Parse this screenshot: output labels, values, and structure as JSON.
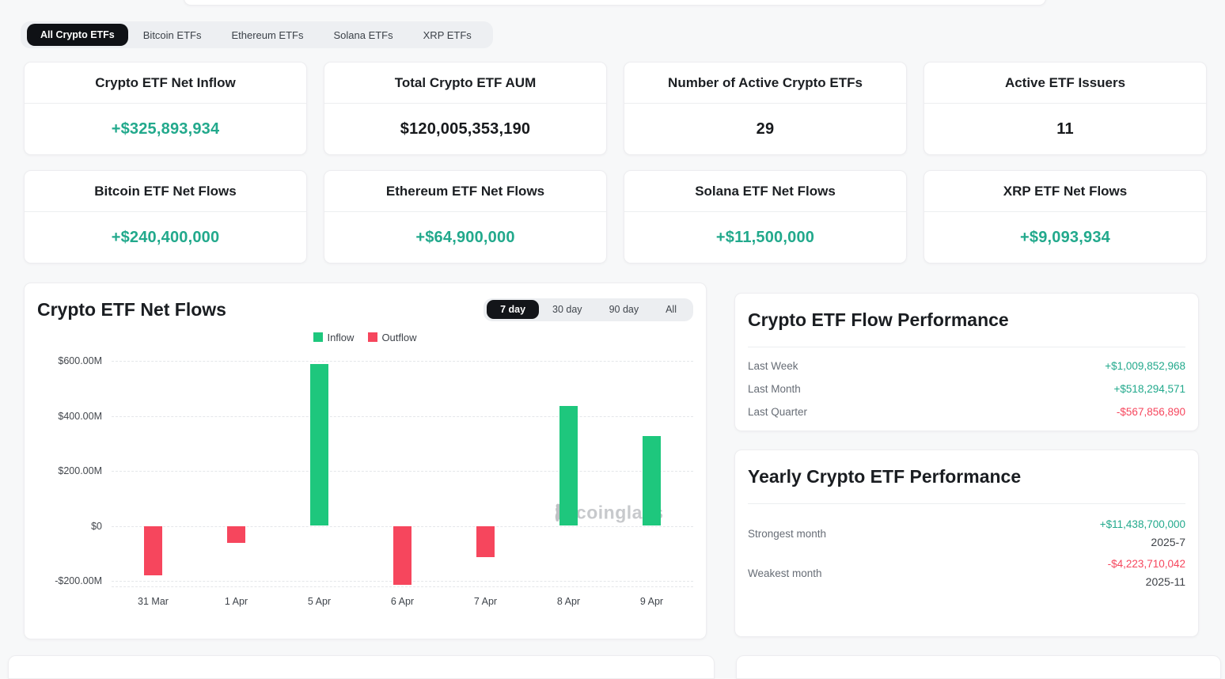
{
  "colors": {
    "positive": "#22A98C",
    "negative": "#F6465D",
    "neutral": "#17191C",
    "bar_green": "#1EC77D",
    "bar_red": "#F6465D",
    "active_pill": "#0F1115",
    "watermark_gray": "#C7C9CC"
  },
  "top_tabs": {
    "items": [
      {
        "label": "All Crypto ETFs",
        "active": true
      },
      {
        "label": "Bitcoin ETFs",
        "active": false
      },
      {
        "label": "Ethereum ETFs",
        "active": false
      },
      {
        "label": "Solana ETFs",
        "active": false
      },
      {
        "label": "XRP ETFs",
        "active": false
      }
    ]
  },
  "stat_cards": [
    {
      "title": "Crypto ETF Net Inflow",
      "value": "+$325,893,934",
      "color": "positive"
    },
    {
      "title": "Total Crypto ETF AUM",
      "value": "$120,005,353,190",
      "color": "neutral"
    },
    {
      "title": "Number of Active Crypto ETFs",
      "value": "29",
      "color": "neutral"
    },
    {
      "title": "Active ETF Issuers",
      "value": "11",
      "color": "neutral"
    },
    {
      "title": "Bitcoin ETF Net Flows",
      "value": "+$240,400,000",
      "color": "positive"
    },
    {
      "title": "Ethereum ETF Net Flows",
      "value": "+$64,900,000",
      "color": "positive"
    },
    {
      "title": "Solana ETF Net Flows",
      "value": "+$11,500,000",
      "color": "positive"
    },
    {
      "title": "XRP ETF Net Flows",
      "value": "+$9,093,934",
      "color": "positive"
    }
  ],
  "chart_card": {
    "title": "Crypto ETF Net Flows",
    "period_tabs": [
      {
        "label": "7 day",
        "active": true
      },
      {
        "label": "30 day",
        "active": false
      },
      {
        "label": "90 day",
        "active": false
      },
      {
        "label": "All",
        "active": false
      }
    ],
    "legend": [
      {
        "label": "Inflow",
        "color": "#1EC77D"
      },
      {
        "label": "Outflow",
        "color": "#F6465D"
      }
    ],
    "watermark": "coinglass"
  },
  "chart_data": {
    "type": "bar",
    "title": "Crypto ETF Net Flows",
    "categories": [
      "31 Mar",
      "1 Apr",
      "5 Apr",
      "6 Apr",
      "7 Apr",
      "8 Apr",
      "9 Apr"
    ],
    "values": [
      -180,
      -63,
      588,
      -215,
      -115,
      435,
      326
    ],
    "unit": "USD millions",
    "ytick_labels": [
      "$600.00M",
      "$400.00M",
      "$200.00M",
      "$0",
      "-$200.00M"
    ],
    "ytick_values": [
      600,
      400,
      200,
      0,
      -200
    ],
    "ylim": [
      -223,
      600
    ],
    "grid": "dashed-horizontal",
    "legend_position": "top-center",
    "positive_color": "#1EC77D",
    "negative_color": "#F6465D"
  },
  "flow_performance": {
    "title": "Crypto ETF Flow Performance",
    "rows": [
      {
        "label": "Last Week",
        "value": "+$1,009,852,968",
        "direction": "positive"
      },
      {
        "label": "Last Month",
        "value": "+$518,294,571",
        "direction": "positive"
      },
      {
        "label": "Last Quarter",
        "value": "-$567,856,890",
        "direction": "negative"
      }
    ]
  },
  "yearly_performance": {
    "title": "Yearly Crypto ETF Performance",
    "rows": [
      {
        "label": "Strongest month",
        "value": "+$11,438,700,000",
        "period": "2025-7",
        "direction": "positive"
      },
      {
        "label": "Weakest month",
        "value": "-$4,223,710,042",
        "period": "2025-11",
        "direction": "negative"
      }
    ]
  }
}
